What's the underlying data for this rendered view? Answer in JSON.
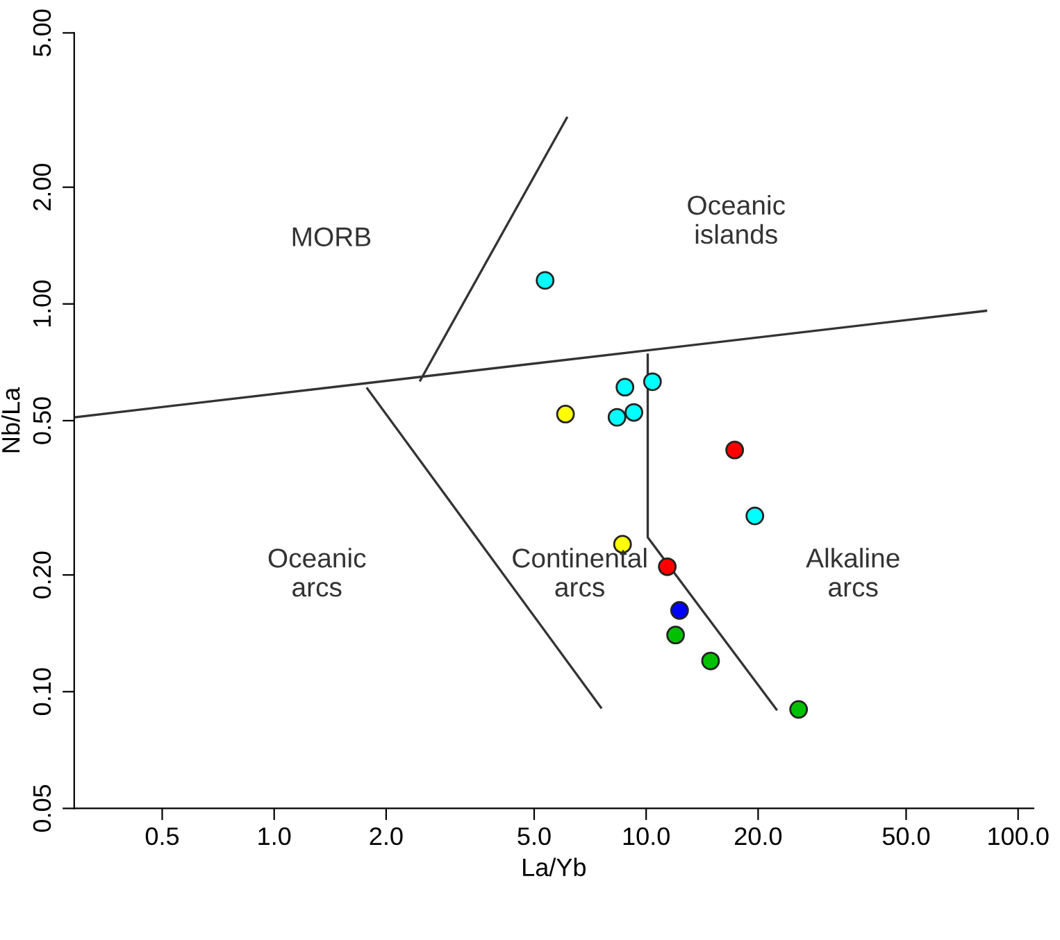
{
  "chart_data": {
    "type": "scatter",
    "xlabel": "La/Yb",
    "ylabel": "Nb/La",
    "log": "xy",
    "xlim": [
      0.29,
      110
    ],
    "ylim": [
      0.05,
      5
    ],
    "xticks": [
      {
        "value": 0.5,
        "label": "0.5"
      },
      {
        "value": 1,
        "label": "1.0"
      },
      {
        "value": 2,
        "label": "2.0"
      },
      {
        "value": 5,
        "label": "5.0"
      },
      {
        "value": 10,
        "label": "10.0"
      },
      {
        "value": 20,
        "label": "20.0"
      },
      {
        "value": 50,
        "label": "50.0"
      },
      {
        "value": 100,
        "label": "100.0"
      }
    ],
    "yticks": [
      {
        "value": 0.05,
        "label": "0.05"
      },
      {
        "value": 0.1,
        "label": "0.10"
      },
      {
        "value": 0.2,
        "label": "0.20"
      },
      {
        "value": 0.5,
        "label": "0.50"
      },
      {
        "value": 1,
        "label": "1.00"
      },
      {
        "value": 2,
        "label": "2.00"
      },
      {
        "value": 5,
        "label": "5.00"
      }
    ],
    "grid": false,
    "legend": false,
    "marker": "circle",
    "series": [
      {
        "type": "line",
        "color": "#333333",
        "x": [
          0.29,
          82
        ],
        "values": [
          0.51,
          0.96
        ],
        "marker": "none"
      },
      {
        "type": "line",
        "color": "#333333",
        "x": [
          2.47,
          6.12
        ],
        "values": [
          0.635,
          3.02
        ],
        "marker": "none"
      },
      {
        "type": "line",
        "color": "#333333",
        "x": [
          1.78,
          7.56
        ],
        "values": [
          0.605,
          0.091
        ],
        "marker": "none"
      },
      {
        "type": "line",
        "color": "#333333",
        "x": [
          10.1,
          10.1,
          22.4
        ],
        "values": [
          0.74,
          0.25,
          0.09
        ],
        "marker": "none"
      },
      {
        "color": "#00ffff",
        "x": [
          5.35,
          8.77,
          10.4,
          8.35,
          9.27,
          19.6
        ],
        "values": [
          1.15,
          0.61,
          0.63,
          0.51,
          0.525,
          0.284
        ]
      },
      {
        "color": "#ffff00",
        "x": [
          6.07,
          8.64
        ],
        "values": [
          0.52,
          0.24
        ]
      },
      {
        "color": "#ff0000",
        "x": [
          17.3,
          11.4
        ],
        "values": [
          0.42,
          0.21
        ]
      },
      {
        "color": "#0000ff",
        "x": [
          12.3
        ],
        "values": [
          0.162
        ]
      },
      {
        "color": "#00c000",
        "x": [
          12.0,
          14.9,
          25.7
        ],
        "values": [
          0.14,
          0.12,
          0.09
        ]
      }
    ],
    "annotations": [
      "MORB",
      "Oceanic\nislands",
      "Oceanic\narcs",
      "Continental\narcs",
      "Alkaline\narcs"
    ]
  }
}
